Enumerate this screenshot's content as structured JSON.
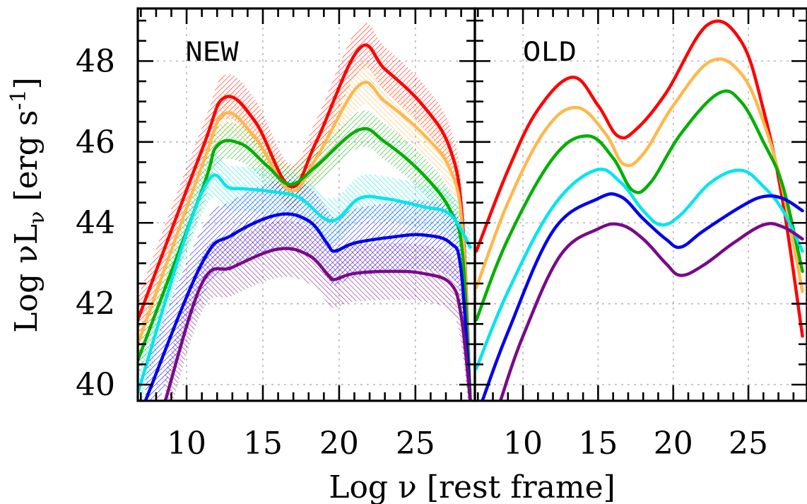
{
  "chart_data": [
    {
      "type": "line",
      "panel_label": "NEW",
      "ylabel": "Log νL_ν [erg s^-1]",
      "xlabel": "Log ν [rest frame]",
      "xlim": [
        6.8,
        28.9
      ],
      "ylim": [
        39.6,
        49.3
      ],
      "xticks": [
        10,
        15,
        20,
        25
      ],
      "yticks": [
        40,
        42,
        44,
        46,
        48
      ],
      "grid": true,
      "series": [
        {
          "color": "#ff0000",
          "band": 0.55,
          "points": [
            [
              6.8,
              41.6
            ],
            [
              11.0,
              45.8
            ],
            [
              12.5,
              47.1
            ],
            [
              14.5,
              46.5
            ],
            [
              16.8,
              44.9
            ],
            [
              18.5,
              46.0
            ],
            [
              21.3,
              48.3
            ],
            [
              23.0,
              47.8
            ],
            [
              25.5,
              46.9
            ],
            [
              27.3,
              45.8
            ],
            [
              28.1,
              44.0
            ],
            [
              28.6,
              39.6
            ]
          ]
        },
        {
          "color": "#ffb84d",
          "band": 0.55,
          "points": [
            [
              6.8,
              41.0
            ],
            [
              11.0,
              45.4
            ],
            [
              12.5,
              46.7
            ],
            [
              14.5,
              46.1
            ],
            [
              16.8,
              44.8
            ],
            [
              18.5,
              45.6
            ],
            [
              21.3,
              47.4
            ],
            [
              23.0,
              47.0
            ],
            [
              25.5,
              46.2
            ],
            [
              27.3,
              45.3
            ],
            [
              28.1,
              43.8
            ],
            [
              28.6,
              39.6
            ]
          ]
        },
        {
          "color": "#00b000",
          "band": 0.45,
          "points": [
            [
              6.8,
              40.6
            ],
            [
              11.0,
              44.8
            ],
            [
              12.0,
              45.9
            ],
            [
              13.6,
              45.95
            ],
            [
              15.3,
              45.4
            ],
            [
              16.8,
              44.95
            ],
            [
              18.5,
              45.4
            ],
            [
              21.3,
              46.3
            ],
            [
              23.0,
              46.0
            ],
            [
              25.5,
              45.2
            ],
            [
              27.3,
              44.3
            ],
            [
              28.1,
              43.2
            ],
            [
              28.6,
              39.6
            ]
          ]
        },
        {
          "color": "#00e5ee",
          "band": 0.55,
          "points": [
            [
              6.8,
              39.8
            ],
            [
              11.0,
              44.75
            ],
            [
              13.0,
              44.85
            ],
            [
              16.0,
              44.75
            ],
            [
              17.5,
              44.6
            ],
            [
              19.5,
              44.05
            ],
            [
              21.3,
              44.6
            ],
            [
              23.0,
              44.6
            ],
            [
              25.5,
              44.4
            ],
            [
              27.3,
              44.2
            ],
            [
              28.6,
              43.4
            ]
          ]
        },
        {
          "color": "#0000ee",
          "band": 0.85,
          "points": [
            [
              7.3,
              39.6
            ],
            [
              11.0,
              43.0
            ],
            [
              13.0,
              43.7
            ],
            [
              16.0,
              44.2
            ],
            [
              18.0,
              44.05
            ],
            [
              19.2,
              43.5
            ],
            [
              19.7,
              43.3
            ],
            [
              21.0,
              43.5
            ],
            [
              23.5,
              43.65
            ],
            [
              25.5,
              43.7
            ],
            [
              27.3,
              43.5
            ],
            [
              28.0,
              42.8
            ],
            [
              28.6,
              39.6
            ]
          ]
        },
        {
          "color": "#7a0a8a",
          "band": 0.7,
          "points": [
            [
              8.6,
              39.6
            ],
            [
              11.0,
              42.5
            ],
            [
              13.0,
              42.9
            ],
            [
              16.0,
              43.35
            ],
            [
              18.0,
              43.2
            ],
            [
              19.3,
              42.7
            ],
            [
              19.7,
              42.6
            ],
            [
              21.0,
              42.75
            ],
            [
              23.5,
              42.8
            ],
            [
              25.5,
              42.75
            ],
            [
              27.3,
              42.5
            ],
            [
              28.0,
              41.7
            ],
            [
              28.6,
              39.6
            ]
          ]
        }
      ]
    },
    {
      "type": "line",
      "panel_label": "OLD",
      "xlim": [
        6.8,
        28.9
      ],
      "ylim": [
        39.6,
        49.3
      ],
      "xticks": [
        10,
        15,
        20,
        25
      ],
      "grid": true,
      "series": [
        {
          "color": "#ff0000",
          "points": [
            [
              6.9,
              43.3
            ],
            [
              9.0,
              45.3
            ],
            [
              11.0,
              46.8
            ],
            [
              13.3,
              47.6
            ],
            [
              15.0,
              46.9
            ],
            [
              16.3,
              46.15
            ],
            [
              17.5,
              46.3
            ],
            [
              19.5,
              47.2
            ],
            [
              22.3,
              48.9
            ],
            [
              24.5,
              48.5
            ],
            [
              26.0,
              46.8
            ],
            [
              27.3,
              44.5
            ],
            [
              28.6,
              41.2
            ]
          ]
        },
        {
          "color": "#ffb84d",
          "points": [
            [
              6.9,
              42.4
            ],
            [
              9.0,
              44.5
            ],
            [
              11.5,
              46.3
            ],
            [
              13.6,
              46.85
            ],
            [
              15.5,
              46.2
            ],
            [
              16.7,
              45.45
            ],
            [
              18.0,
              45.7
            ],
            [
              20.0,
              46.9
            ],
            [
              22.5,
              48.0
            ],
            [
              24.5,
              47.7
            ],
            [
              26.0,
              46.5
            ],
            [
              27.3,
              44.8
            ],
            [
              28.6,
              42.3
            ]
          ]
        },
        {
          "color": "#00b000",
          "points": [
            [
              6.9,
              41.6
            ],
            [
              9.0,
              43.6
            ],
            [
              12.0,
              45.6
            ],
            [
              14.3,
              46.15
            ],
            [
              16.0,
              45.6
            ],
            [
              17.3,
              44.8
            ],
            [
              18.5,
              45.0
            ],
            [
              20.5,
              46.2
            ],
            [
              23.0,
              47.2
            ],
            [
              24.5,
              47.0
            ],
            [
              26.0,
              46.0
            ],
            [
              27.3,
              44.9
            ],
            [
              28.6,
              42.8
            ]
          ]
        },
        {
          "color": "#00e5ee",
          "points": [
            [
              6.9,
              40.4
            ],
            [
              9.0,
              42.3
            ],
            [
              12.0,
              44.4
            ],
            [
              14.8,
              45.3
            ],
            [
              16.5,
              45.0
            ],
            [
              18.0,
              44.3
            ],
            [
              19.2,
              43.95
            ],
            [
              20.5,
              44.2
            ],
            [
              22.5,
              45.0
            ],
            [
              24.5,
              45.3
            ],
            [
              26.0,
              44.9
            ],
            [
              27.3,
              44.3
            ],
            [
              28.6,
              43.3
            ]
          ]
        },
        {
          "color": "#0000ee",
          "points": [
            [
              7.3,
              39.6
            ],
            [
              9.0,
              41.3
            ],
            [
              12.0,
              43.8
            ],
            [
              15.0,
              44.6
            ],
            [
              16.5,
              44.65
            ],
            [
              18.0,
              44.1
            ],
            [
              19.5,
              43.6
            ],
            [
              20.5,
              43.4
            ],
            [
              22.0,
              43.8
            ],
            [
              24.5,
              44.4
            ],
            [
              26.0,
              44.65
            ],
            [
              27.3,
              44.6
            ],
            [
              28.6,
              44.3
            ]
          ]
        },
        {
          "color": "#7a0a8a",
          "points": [
            [
              8.5,
              39.6
            ],
            [
              10.0,
              41.2
            ],
            [
              12.5,
              43.2
            ],
            [
              15.0,
              43.85
            ],
            [
              16.5,
              43.95
            ],
            [
              18.0,
              43.6
            ],
            [
              19.5,
              43.0
            ],
            [
              20.5,
              42.7
            ],
            [
              22.0,
              42.95
            ],
            [
              24.0,
              43.5
            ],
            [
              26.0,
              43.95
            ],
            [
              27.3,
              43.9
            ],
            [
              28.6,
              43.6
            ]
          ]
        }
      ]
    }
  ]
}
